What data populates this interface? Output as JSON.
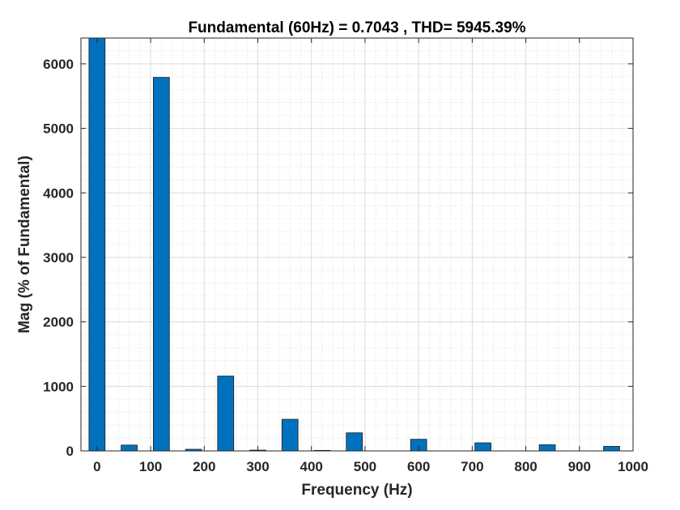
{
  "chart_data": {
    "type": "bar",
    "title": "Fundamental (60Hz) = 0.7043 , THD= 5945.39%",
    "xlabel": "Frequency (Hz)",
    "ylabel": "Mag (% of Fundamental)",
    "xlim": [
      -30,
      1000
    ],
    "ylim": [
      0,
      6400
    ],
    "xticks": [
      0,
      100,
      200,
      300,
      400,
      500,
      600,
      700,
      800,
      900,
      1000
    ],
    "yticks": [
      0,
      1000,
      2000,
      3000,
      4000,
      5000,
      6000
    ],
    "grid": true,
    "minor_grid": true,
    "bar_color": "#0072BD",
    "bar_width": 30,
    "x": [
      0,
      60,
      120,
      180,
      240,
      300,
      360,
      420,
      480,
      540,
      600,
      660,
      720,
      780,
      840,
      900,
      960
    ],
    "values": [
      6400,
      90,
      5790,
      25,
      1160,
      12,
      490,
      8,
      280,
      0,
      180,
      0,
      125,
      0,
      95,
      0,
      70
    ]
  }
}
